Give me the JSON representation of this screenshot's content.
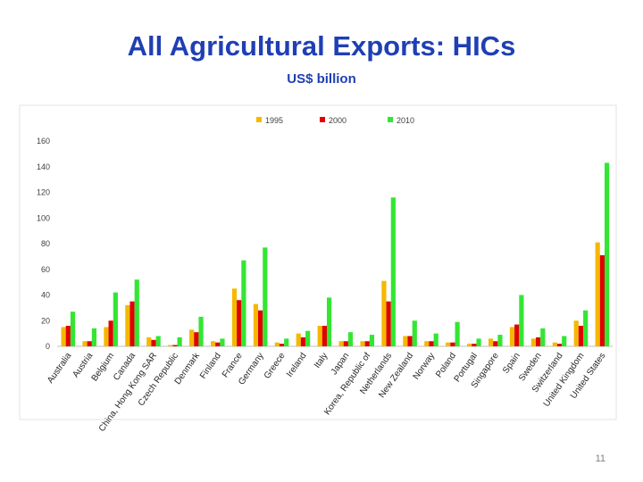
{
  "slide": {
    "title": "All Agricultural Exports: HICs",
    "subtitle": "US$ billion",
    "page_number": "11"
  },
  "chart_data": {
    "type": "bar",
    "title": "",
    "xlabel": "",
    "ylabel": "",
    "ylim": [
      0,
      160
    ],
    "yticks": [
      0,
      20,
      40,
      60,
      80,
      100,
      120,
      140,
      160
    ],
    "grid": false,
    "legend_position": "top",
    "categories": [
      "Australia",
      "Austria",
      "Belgium",
      "Canada",
      "China, Hong Kong SAR",
      "Czech Republic",
      "Denmark",
      "Finland",
      "France",
      "Germany",
      "Greece",
      "Ireland",
      "Italy",
      "Japan",
      "Korea, Republic of",
      "Netherlands",
      "New Zealand",
      "Norway",
      "Poland",
      "Portugal",
      "Singapore",
      "Spain",
      "Sweden",
      "Switzerland",
      "United Kingdom",
      "United States"
    ],
    "series": [
      {
        "name": "1995",
        "color": "#f5b800",
        "values": [
          15,
          4,
          15,
          32,
          7,
          1,
          13,
          4,
          45,
          33,
          3,
          10,
          16,
          4,
          4,
          51,
          8,
          4,
          3,
          2,
          6,
          15,
          6,
          3,
          20,
          81
        ]
      },
      {
        "name": "2000",
        "color": "#e00000",
        "values": [
          16,
          4,
          20,
          35,
          5,
          1,
          11,
          3,
          36,
          28,
          2,
          7,
          16,
          4,
          4,
          35,
          8,
          4,
          3,
          2,
          4,
          17,
          7,
          2,
          16,
          71
        ]
      },
      {
        "name": "2010",
        "color": "#33e633",
        "values": [
          27,
          14,
          42,
          52,
          8,
          7,
          23,
          6,
          67,
          77,
          6,
          12,
          38,
          11,
          9,
          116,
          20,
          10,
          19,
          6,
          9,
          40,
          14,
          8,
          28,
          143
        ]
      }
    ]
  }
}
